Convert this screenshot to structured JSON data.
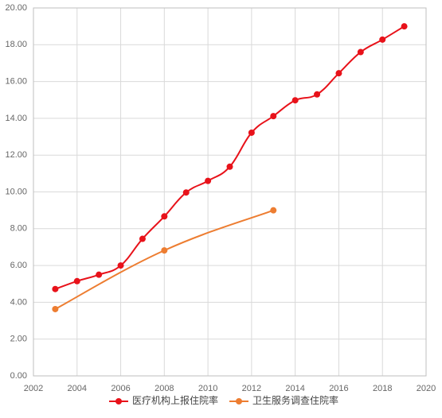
{
  "chart_data": {
    "type": "line",
    "xlim": [
      2002,
      2020
    ],
    "xticks": [
      2002,
      2004,
      2006,
      2008,
      2010,
      2012,
      2014,
      2016,
      2018,
      2020
    ],
    "ylim": [
      0,
      20
    ],
    "yticks": [
      {
        "value": 0,
        "label": "0.00"
      },
      {
        "value": 2,
        "label": "2.00"
      },
      {
        "value": 4,
        "label": "4.00"
      },
      {
        "value": 6,
        "label": "6.00"
      },
      {
        "value": 8,
        "label": "8.00"
      },
      {
        "value": 10,
        "label": "10.00"
      },
      {
        "value": 12,
        "label": "12.00"
      },
      {
        "value": 14,
        "label": "14.00"
      },
      {
        "value": 16,
        "label": "16.00"
      },
      {
        "value": 18,
        "label": "18.00"
      },
      {
        "value": 20,
        "label": "20.00"
      }
    ],
    "grid": true,
    "legend": "bottom",
    "series": [
      {
        "name": "医疗机构上报住院率",
        "color": "#e8121a",
        "x": [
          2003,
          2004,
          2005,
          2006,
          2007,
          2008,
          2009,
          2010,
          2011,
          2012,
          2013,
          2014,
          2015,
          2016,
          2017,
          2018,
          2019
        ],
        "values": [
          4.72,
          5.15,
          5.5,
          6.0,
          7.45,
          8.67,
          9.97,
          10.6,
          11.37,
          13.22,
          14.12,
          14.98,
          15.3,
          16.45,
          17.6,
          18.28,
          19.0
        ]
      },
      {
        "name": "卫生服务调查住院率",
        "color": "#ed7d31",
        "x": [
          2003,
          2008,
          2013
        ],
        "values": [
          3.63,
          6.82,
          9.0
        ]
      }
    ]
  }
}
